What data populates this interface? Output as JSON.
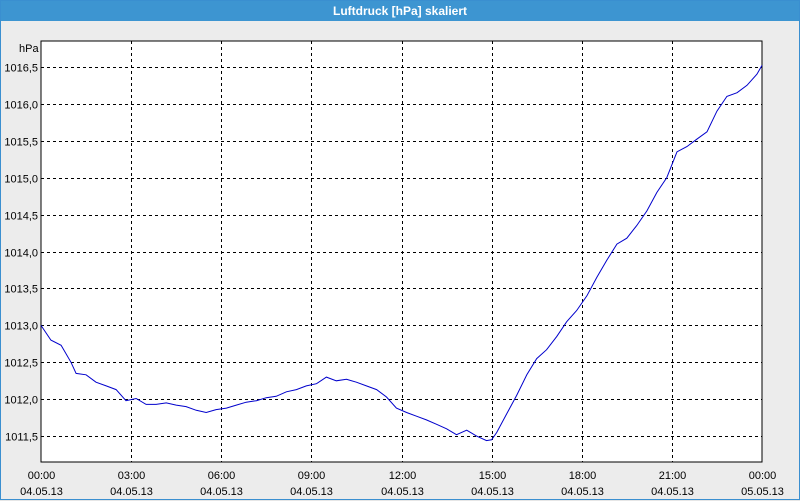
{
  "window": {
    "title": "Luftdruck [hPa] skaliert"
  },
  "chart_data": {
    "type": "line",
    "title": "Luftdruck [hPa] skaliert",
    "ylabel": "hPa",
    "xlabel": "",
    "grid": true,
    "ylim": [
      1011.15,
      1016.85
    ],
    "y_ticks": [
      "1011,5",
      "1012,0",
      "1012,5",
      "1013,0",
      "1013,5",
      "1014,0",
      "1014,5",
      "1015,0",
      "1015,5",
      "1016,0",
      "1016,5"
    ],
    "y_tick_values": [
      1011.5,
      1012.0,
      1012.5,
      1013.0,
      1013.5,
      1014.0,
      1014.5,
      1015.0,
      1015.5,
      1016.0,
      1016.5
    ],
    "x_ticks": [
      {
        "time": "00:00",
        "date": "04.05.13",
        "hours": 0
      },
      {
        "time": "03:00",
        "date": "04.05.13",
        "hours": 3
      },
      {
        "time": "06:00",
        "date": "04.05.13",
        "hours": 6
      },
      {
        "time": "09:00",
        "date": "04.05.13",
        "hours": 9
      },
      {
        "time": "12:00",
        "date": "04.05.13",
        "hours": 12
      },
      {
        "time": "15:00",
        "date": "04.05.13",
        "hours": 15
      },
      {
        "time": "18:00",
        "date": "04.05.13",
        "hours": 18
      },
      {
        "time": "21:00",
        "date": "04.05.13",
        "hours": 21
      },
      {
        "time": "00:00",
        "date": "05.05.13",
        "hours": 24
      }
    ],
    "xlim_hours": [
      0,
      24
    ],
    "series": [
      {
        "color": "#0000cc",
        "points": [
          [
            0.0,
            1013.0
          ],
          [
            0.33,
            1012.8
          ],
          [
            0.67,
            1012.73
          ],
          [
            1.0,
            1012.5
          ],
          [
            1.17,
            1012.35
          ],
          [
            1.5,
            1012.33
          ],
          [
            1.83,
            1012.23
          ],
          [
            2.17,
            1012.18
          ],
          [
            2.5,
            1012.13
          ],
          [
            2.83,
            1011.98
          ],
          [
            3.17,
            1012.01
          ],
          [
            3.5,
            1011.93
          ],
          [
            3.83,
            1011.93
          ],
          [
            4.17,
            1011.95
          ],
          [
            4.5,
            1011.92
          ],
          [
            4.83,
            1011.9
          ],
          [
            5.17,
            1011.85
          ],
          [
            5.5,
            1011.82
          ],
          [
            5.83,
            1011.86
          ],
          [
            6.17,
            1011.88
          ],
          [
            6.5,
            1011.92
          ],
          [
            6.83,
            1011.96
          ],
          [
            7.17,
            1011.98
          ],
          [
            7.5,
            1012.02
          ],
          [
            7.83,
            1012.04
          ],
          [
            8.17,
            1012.1
          ],
          [
            8.5,
            1012.13
          ],
          [
            8.83,
            1012.18
          ],
          [
            9.17,
            1012.21
          ],
          [
            9.5,
            1012.3
          ],
          [
            9.83,
            1012.25
          ],
          [
            10.17,
            1012.27
          ],
          [
            10.5,
            1012.23
          ],
          [
            10.83,
            1012.18
          ],
          [
            11.17,
            1012.13
          ],
          [
            11.5,
            1012.03
          ],
          [
            11.83,
            1011.88
          ],
          [
            12.17,
            1011.82
          ],
          [
            12.5,
            1011.77
          ],
          [
            12.83,
            1011.72
          ],
          [
            13.17,
            1011.66
          ],
          [
            13.5,
            1011.6
          ],
          [
            13.83,
            1011.52
          ],
          [
            14.17,
            1011.58
          ],
          [
            14.5,
            1011.5
          ],
          [
            14.83,
            1011.44
          ],
          [
            15.0,
            1011.45
          ],
          [
            15.17,
            1011.55
          ],
          [
            15.5,
            1011.8
          ],
          [
            15.83,
            1012.05
          ],
          [
            16.17,
            1012.33
          ],
          [
            16.5,
            1012.55
          ],
          [
            16.83,
            1012.67
          ],
          [
            17.17,
            1012.85
          ],
          [
            17.5,
            1013.05
          ],
          [
            17.83,
            1013.2
          ],
          [
            18.17,
            1013.4
          ],
          [
            18.5,
            1013.65
          ],
          [
            18.83,
            1013.88
          ],
          [
            19.17,
            1014.1
          ],
          [
            19.5,
            1014.18
          ],
          [
            19.83,
            1014.35
          ],
          [
            20.17,
            1014.55
          ],
          [
            20.5,
            1014.8
          ],
          [
            20.83,
            1015.0
          ],
          [
            21.17,
            1015.35
          ],
          [
            21.5,
            1015.42
          ],
          [
            21.83,
            1015.52
          ],
          [
            22.17,
            1015.62
          ],
          [
            22.5,
            1015.9
          ],
          [
            22.83,
            1016.1
          ],
          [
            23.17,
            1016.15
          ],
          [
            23.5,
            1016.25
          ],
          [
            23.83,
            1016.4
          ],
          [
            24.0,
            1016.52
          ]
        ]
      }
    ]
  }
}
